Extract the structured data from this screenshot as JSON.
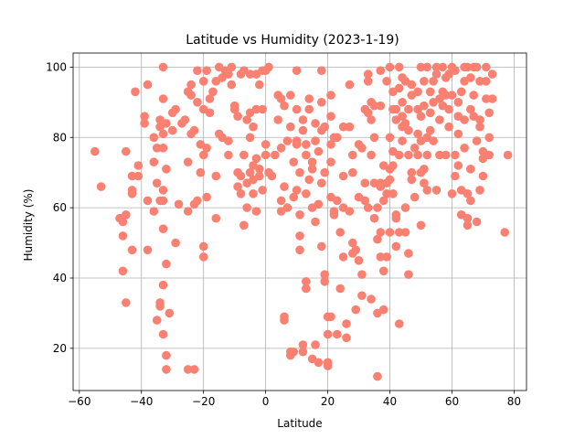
{
  "chart_data": {
    "type": "scatter",
    "title": "Latitude vs Humidity (2023-1-19)",
    "xlabel": "Latitude",
    "ylabel": "Humidity (%)",
    "xlim": [
      -62,
      84
    ],
    "ylim": [
      8,
      104
    ],
    "xticks": [
      -60,
      -40,
      -20,
      0,
      20,
      40,
      60,
      80
    ],
    "yticks": [
      20,
      40,
      60,
      80,
      100
    ],
    "xtick_labels": [
      "−60",
      "−40",
      "−20",
      "0",
      "20",
      "40",
      "60",
      "80"
    ],
    "ytick_labels": [
      "20",
      "40",
      "60",
      "80",
      "100"
    ],
    "grid": true,
    "marker_color": "#fa8072",
    "points": [
      [
        -55,
        76
      ],
      [
        -53,
        66
      ],
      [
        -47,
        57
      ],
      [
        -46,
        56
      ],
      [
        -46,
        52
      ],
      [
        -46,
        42
      ],
      [
        -45,
        58
      ],
      [
        -45,
        33
      ],
      [
        -45,
        76
      ],
      [
        -43,
        69
      ],
      [
        -43,
        65
      ],
      [
        -43,
        64
      ],
      [
        -43,
        48
      ],
      [
        -42,
        93
      ],
      [
        -41,
        69
      ],
      [
        -41,
        72
      ],
      [
        -39,
        84
      ],
      [
        -39,
        86
      ],
      [
        -38,
        95
      ],
      [
        -38,
        62
      ],
      [
        -38,
        48
      ],
      [
        -36,
        80
      ],
      [
        -36,
        73
      ],
      [
        -36,
        59
      ],
      [
        -35,
        28
      ],
      [
        -35,
        67
      ],
      [
        -35,
        77
      ],
      [
        -34,
        85
      ],
      [
        -34,
        83
      ],
      [
        -34,
        62
      ],
      [
        -34,
        32
      ],
      [
        -34,
        33
      ],
      [
        -33,
        38
      ],
      [
        -33,
        54
      ],
      [
        -33,
        24
      ],
      [
        -33,
        62
      ],
      [
        -33,
        65
      ],
      [
        -33,
        77
      ],
      [
        -33,
        100
      ],
      [
        -33,
        91
      ],
      [
        -33,
        81
      ],
      [
        -32,
        14
      ],
      [
        -32,
        18
      ],
      [
        -32,
        44
      ],
      [
        -32,
        71
      ],
      [
        -32,
        84
      ],
      [
        -31,
        30
      ],
      [
        -30,
        87
      ],
      [
        -30,
        82
      ],
      [
        -29,
        88
      ],
      [
        -29,
        50
      ],
      [
        -28,
        61
      ],
      [
        -27,
        84
      ],
      [
        -26,
        85
      ],
      [
        -25,
        14
      ],
      [
        -25,
        59
      ],
      [
        -25,
        73
      ],
      [
        -25,
        93
      ],
      [
        -24,
        95
      ],
      [
        -24,
        92
      ],
      [
        -24,
        81
      ],
      [
        -23,
        14
      ],
      [
        -23,
        61
      ],
      [
        -23,
        82
      ],
      [
        -22,
        62
      ],
      [
        -22,
        99
      ],
      [
        -22,
        90
      ],
      [
        -21,
        78
      ],
      [
        -21,
        70
      ],
      [
        -20,
        75
      ],
      [
        -20,
        49
      ],
      [
        -20,
        46
      ],
      [
        -20,
        96
      ],
      [
        -20,
        88
      ],
      [
        -19,
        77
      ],
      [
        -19,
        63
      ],
      [
        -19,
        99
      ],
      [
        -18,
        91
      ],
      [
        -18,
        87
      ],
      [
        -17,
        93
      ],
      [
        -16,
        96
      ],
      [
        -16,
        57
      ],
      [
        -16,
        69
      ],
      [
        -15,
        100
      ],
      [
        -15,
        81
      ],
      [
        -14,
        97
      ],
      [
        -14,
        80
      ],
      [
        -13,
        99
      ],
      [
        -12,
        98
      ],
      [
        -12,
        79
      ],
      [
        -12,
        75
      ],
      [
        -11,
        100
      ],
      [
        -11,
        95
      ],
      [
        -10,
        89
      ],
      [
        -10,
        88
      ],
      [
        -9,
        86
      ],
      [
        -9,
        70
      ],
      [
        -9,
        66
      ],
      [
        -8,
        98
      ],
      [
        -8,
        69
      ],
      [
        -8,
        64
      ],
      [
        -7,
        55
      ],
      [
        -7,
        99
      ],
      [
        -7,
        75
      ],
      [
        -6,
        85
      ],
      [
        -6,
        67
      ],
      [
        -6,
        60
      ],
      [
        -5,
        98
      ],
      [
        -5,
        87
      ],
      [
        -5,
        80
      ],
      [
        -5,
        70
      ],
      [
        -4,
        83
      ],
      [
        -4,
        72
      ],
      [
        -4,
        68
      ],
      [
        -4,
        64
      ],
      [
        -3,
        98
      ],
      [
        -3,
        88
      ],
      [
        -3,
        74
      ],
      [
        -3,
        59
      ],
      [
        -2,
        95
      ],
      [
        -2,
        71
      ],
      [
        -2,
        69
      ],
      [
        -1,
        99
      ],
      [
        -1,
        88
      ],
      [
        -1,
        65
      ],
      [
        0,
        78
      ],
      [
        0,
        75
      ],
      [
        0,
        99
      ],
      [
        1,
        100
      ],
      [
        1,
        70
      ],
      [
        2,
        69
      ],
      [
        3,
        75
      ],
      [
        4,
        92
      ],
      [
        4,
        85
      ],
      [
        5,
        91
      ],
      [
        5,
        77
      ],
      [
        5,
        62
      ],
      [
        5,
        59
      ],
      [
        6,
        28
      ],
      [
        6,
        29
      ],
      [
        6,
        66
      ],
      [
        6,
        89
      ],
      [
        7,
        79
      ],
      [
        7,
        60
      ],
      [
        8,
        92
      ],
      [
        8,
        83
      ],
      [
        8,
        18
      ],
      [
        8,
        19
      ],
      [
        9,
        19
      ],
      [
        9,
        73
      ],
      [
        9,
        63
      ],
      [
        10,
        99
      ],
      [
        10,
        88
      ],
      [
        10,
        79
      ],
      [
        10,
        78
      ],
      [
        10,
        65
      ],
      [
        11,
        70
      ],
      [
        11,
        58
      ],
      [
        11,
        52
      ],
      [
        11,
        48
      ],
      [
        12,
        85
      ],
      [
        12,
        82
      ],
      [
        12,
        19
      ],
      [
        12,
        21
      ],
      [
        13,
        39
      ],
      [
        13,
        37
      ],
      [
        13,
        64
      ],
      [
        13,
        78
      ],
      [
        13,
        75
      ],
      [
        14,
        91
      ],
      [
        14,
        68
      ],
      [
        14,
        88
      ],
      [
        15,
        17
      ],
      [
        15,
        60
      ],
      [
        15,
        71
      ],
      [
        15,
        73
      ],
      [
        16,
        84
      ],
      [
        16,
        79
      ],
      [
        16,
        56
      ],
      [
        16,
        21
      ],
      [
        17,
        16
      ],
      [
        17,
        76
      ],
      [
        17,
        61
      ],
      [
        18,
        90
      ],
      [
        18,
        82
      ],
      [
        18,
        67
      ],
      [
        18,
        49
      ],
      [
        18,
        99
      ],
      [
        19,
        41
      ],
      [
        19,
        39
      ],
      [
        19,
        70
      ],
      [
        19,
        83
      ],
      [
        20,
        16
      ],
      [
        20,
        15
      ],
      [
        20,
        24
      ],
      [
        20,
        29
      ],
      [
        21,
        29
      ],
      [
        21,
        92
      ],
      [
        21,
        86
      ],
      [
        21,
        78
      ],
      [
        21,
        73
      ],
      [
        21,
        63
      ],
      [
        22,
        58
      ],
      [
        22,
        80
      ],
      [
        22,
        59
      ],
      [
        23,
        62
      ],
      [
        23,
        24
      ],
      [
        23,
        80
      ],
      [
        24,
        37
      ],
      [
        24,
        53
      ],
      [
        25,
        69
      ],
      [
        25,
        60
      ],
      [
        25,
        46
      ],
      [
        25,
        83
      ],
      [
        26,
        23
      ],
      [
        26,
        27
      ],
      [
        27,
        95
      ],
      [
        27,
        59
      ],
      [
        27,
        83
      ],
      [
        28,
        75
      ],
      [
        28,
        70
      ],
      [
        28,
        50
      ],
      [
        28,
        47
      ],
      [
        29,
        48
      ],
      [
        29,
        31
      ],
      [
        30,
        45
      ],
      [
        30,
        63
      ],
      [
        30,
        78
      ],
      [
        31,
        35
      ],
      [
        31,
        41
      ],
      [
        31,
        77
      ],
      [
        32,
        67
      ],
      [
        32,
        88
      ],
      [
        32,
        62
      ],
      [
        33,
        87
      ],
      [
        33,
        60
      ],
      [
        33,
        96
      ],
      [
        33,
        98
      ],
      [
        34,
        34
      ],
      [
        34,
        90
      ],
      [
        34,
        85
      ],
      [
        34,
        75
      ],
      [
        35,
        89
      ],
      [
        35,
        80
      ],
      [
        35,
        67
      ],
      [
        35,
        57
      ],
      [
        36,
        60
      ],
      [
        36,
        30
      ],
      [
        36,
        12
      ],
      [
        36,
        51
      ],
      [
        37,
        66
      ],
      [
        37,
        53
      ],
      [
        37,
        46
      ],
      [
        37,
        67
      ],
      [
        37,
        99
      ],
      [
        37,
        89
      ],
      [
        38,
        42
      ],
      [
        38,
        31
      ],
      [
        38,
        62
      ],
      [
        38,
        72
      ],
      [
        39,
        46
      ],
      [
        39,
        67
      ],
      [
        39,
        64
      ],
      [
        39,
        96
      ],
      [
        40,
        80
      ],
      [
        40,
        71
      ],
      [
        40,
        68
      ],
      [
        40,
        53
      ],
      [
        40,
        100
      ],
      [
        41,
        93
      ],
      [
        41,
        88
      ],
      [
        41,
        76
      ],
      [
        41,
        72
      ],
      [
        41,
        64
      ],
      [
        42,
        58
      ],
      [
        42,
        57
      ],
      [
        42,
        49
      ],
      [
        42,
        85
      ],
      [
        42,
        88
      ],
      [
        43,
        27
      ],
      [
        43,
        53
      ],
      [
        43,
        75
      ],
      [
        43,
        94
      ],
      [
        43,
        100
      ],
      [
        44,
        97
      ],
      [
        44,
        83
      ],
      [
        44,
        86
      ],
      [
        44,
        90
      ],
      [
        44,
        79
      ],
      [
        45,
        53
      ],
      [
        45,
        60
      ],
      [
        45,
        84
      ],
      [
        45,
        96
      ],
      [
        46,
        47
      ],
      [
        46,
        41
      ],
      [
        46,
        88
      ],
      [
        46,
        82
      ],
      [
        46,
        75
      ],
      [
        47,
        92
      ],
      [
        47,
        95
      ],
      [
        47,
        68
      ],
      [
        47,
        70
      ],
      [
        48,
        63
      ],
      [
        48,
        77
      ],
      [
        49,
        88
      ],
      [
        49,
        93
      ],
      [
        49,
        81
      ],
      [
        49,
        75
      ],
      [
        50,
        70
      ],
      [
        50,
        55
      ],
      [
        50,
        79
      ],
      [
        50,
        86
      ],
      [
        50,
        100
      ],
      [
        51,
        71
      ],
      [
        51,
        67
      ],
      [
        51,
        89
      ],
      [
        51,
        96
      ],
      [
        52,
        100
      ],
      [
        52,
        80
      ],
      [
        52,
        75
      ],
      [
        52,
        65
      ],
      [
        53,
        93
      ],
      [
        53,
        87
      ],
      [
        53,
        82
      ],
      [
        54,
        90
      ],
      [
        54,
        96
      ],
      [
        54,
        79
      ],
      [
        55,
        100
      ],
      [
        55,
        98
      ],
      [
        55,
        65
      ],
      [
        56,
        91
      ],
      [
        56,
        85
      ],
      [
        56,
        75
      ],
      [
        57,
        93
      ],
      [
        57,
        100
      ],
      [
        57,
        89
      ],
      [
        58,
        97
      ],
      [
        58,
        92
      ],
      [
        58,
        75
      ],
      [
        59,
        98
      ],
      [
        59,
        88
      ],
      [
        59,
        83
      ],
      [
        60,
        100
      ],
      [
        60,
        92
      ],
      [
        60,
        64
      ],
      [
        61,
        99
      ],
      [
        61,
        75
      ],
      [
        61,
        69
      ],
      [
        62,
        90
      ],
      [
        62,
        86
      ],
      [
        62,
        81
      ],
      [
        62,
        72
      ],
      [
        63,
        58
      ],
      [
        63,
        65
      ],
      [
        63,
        93
      ],
      [
        64,
        100
      ],
      [
        64,
        96
      ],
      [
        64,
        85
      ],
      [
        64,
        77
      ],
      [
        65,
        64
      ],
      [
        65,
        55
      ],
      [
        65,
        57
      ],
      [
        65,
        100
      ],
      [
        66,
        97
      ],
      [
        66,
        88
      ],
      [
        66,
        71
      ],
      [
        66,
        62
      ],
      [
        67,
        100
      ],
      [
        67,
        92
      ],
      [
        67,
        86
      ],
      [
        68,
        79
      ],
      [
        68,
        56
      ],
      [
        68,
        100
      ],
      [
        69,
        96
      ],
      [
        69,
        65
      ],
      [
        69,
        85
      ],
      [
        69,
        83
      ],
      [
        70,
        74
      ],
      [
        70,
        69
      ],
      [
        70,
        76
      ],
      [
        71,
        100
      ],
      [
        71,
        96
      ],
      [
        71,
        91
      ],
      [
        72,
        87
      ],
      [
        72,
        80
      ],
      [
        72,
        75
      ],
      [
        73,
        98
      ],
      [
        73,
        91
      ],
      [
        77,
        53
      ],
      [
        78,
        75
      ]
    ]
  }
}
